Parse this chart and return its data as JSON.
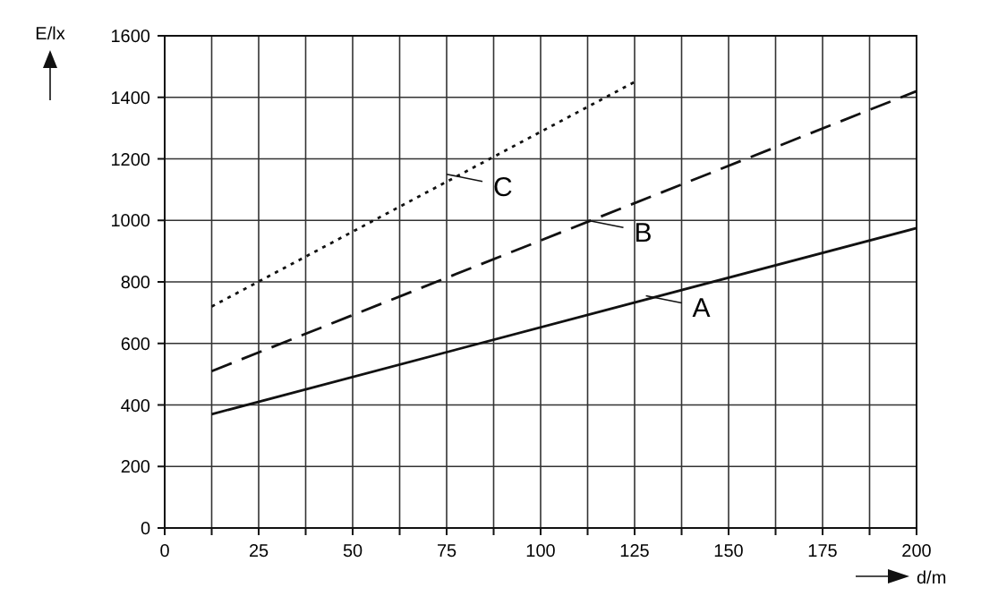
{
  "chart_data": {
    "type": "line",
    "xlabel": "d/m",
    "ylabel": "E/lx",
    "xlim": [
      0,
      200
    ],
    "ylim": [
      0,
      1600
    ],
    "xticks": [
      0,
      {
        "value": 12.5,
        "label": null
      },
      25,
      {
        "value": 37.5,
        "label": null
      },
      50,
      {
        "value": 62.5,
        "label": null
      },
      75,
      {
        "value": 87.5,
        "label": null
      },
      100,
      {
        "value": 112.5,
        "label": null
      },
      125,
      {
        "value": 137.5,
        "label": null
      },
      150,
      {
        "value": 162.5,
        "label": null
      },
      175,
      {
        "value": 187.5,
        "label": null
      },
      200
    ],
    "yticks": [
      0,
      200,
      400,
      600,
      800,
      1000,
      1200,
      1400,
      1600
    ],
    "grid": true,
    "series": [
      {
        "color": "#111111",
        "line_style": "solid",
        "x": [
          12.5,
          200
        ],
        "values": [
          370,
          975
        ]
      },
      {
        "color": "#111111",
        "line_style": "dashed",
        "x": [
          12.5,
          200
        ],
        "values": [
          510,
          1420
        ]
      },
      {
        "color": "#111111",
        "line_style": "dotted",
        "x": [
          12.5,
          125
        ],
        "values": [
          720,
          1450
        ]
      }
    ],
    "annotations": [
      {
        "text": "A",
        "x": 128,
        "y": 755
      },
      {
        "text": "B",
        "x": 112.5,
        "y": 1000
      },
      {
        "text": "C",
        "x": 75,
        "y": 1150
      }
    ]
  }
}
